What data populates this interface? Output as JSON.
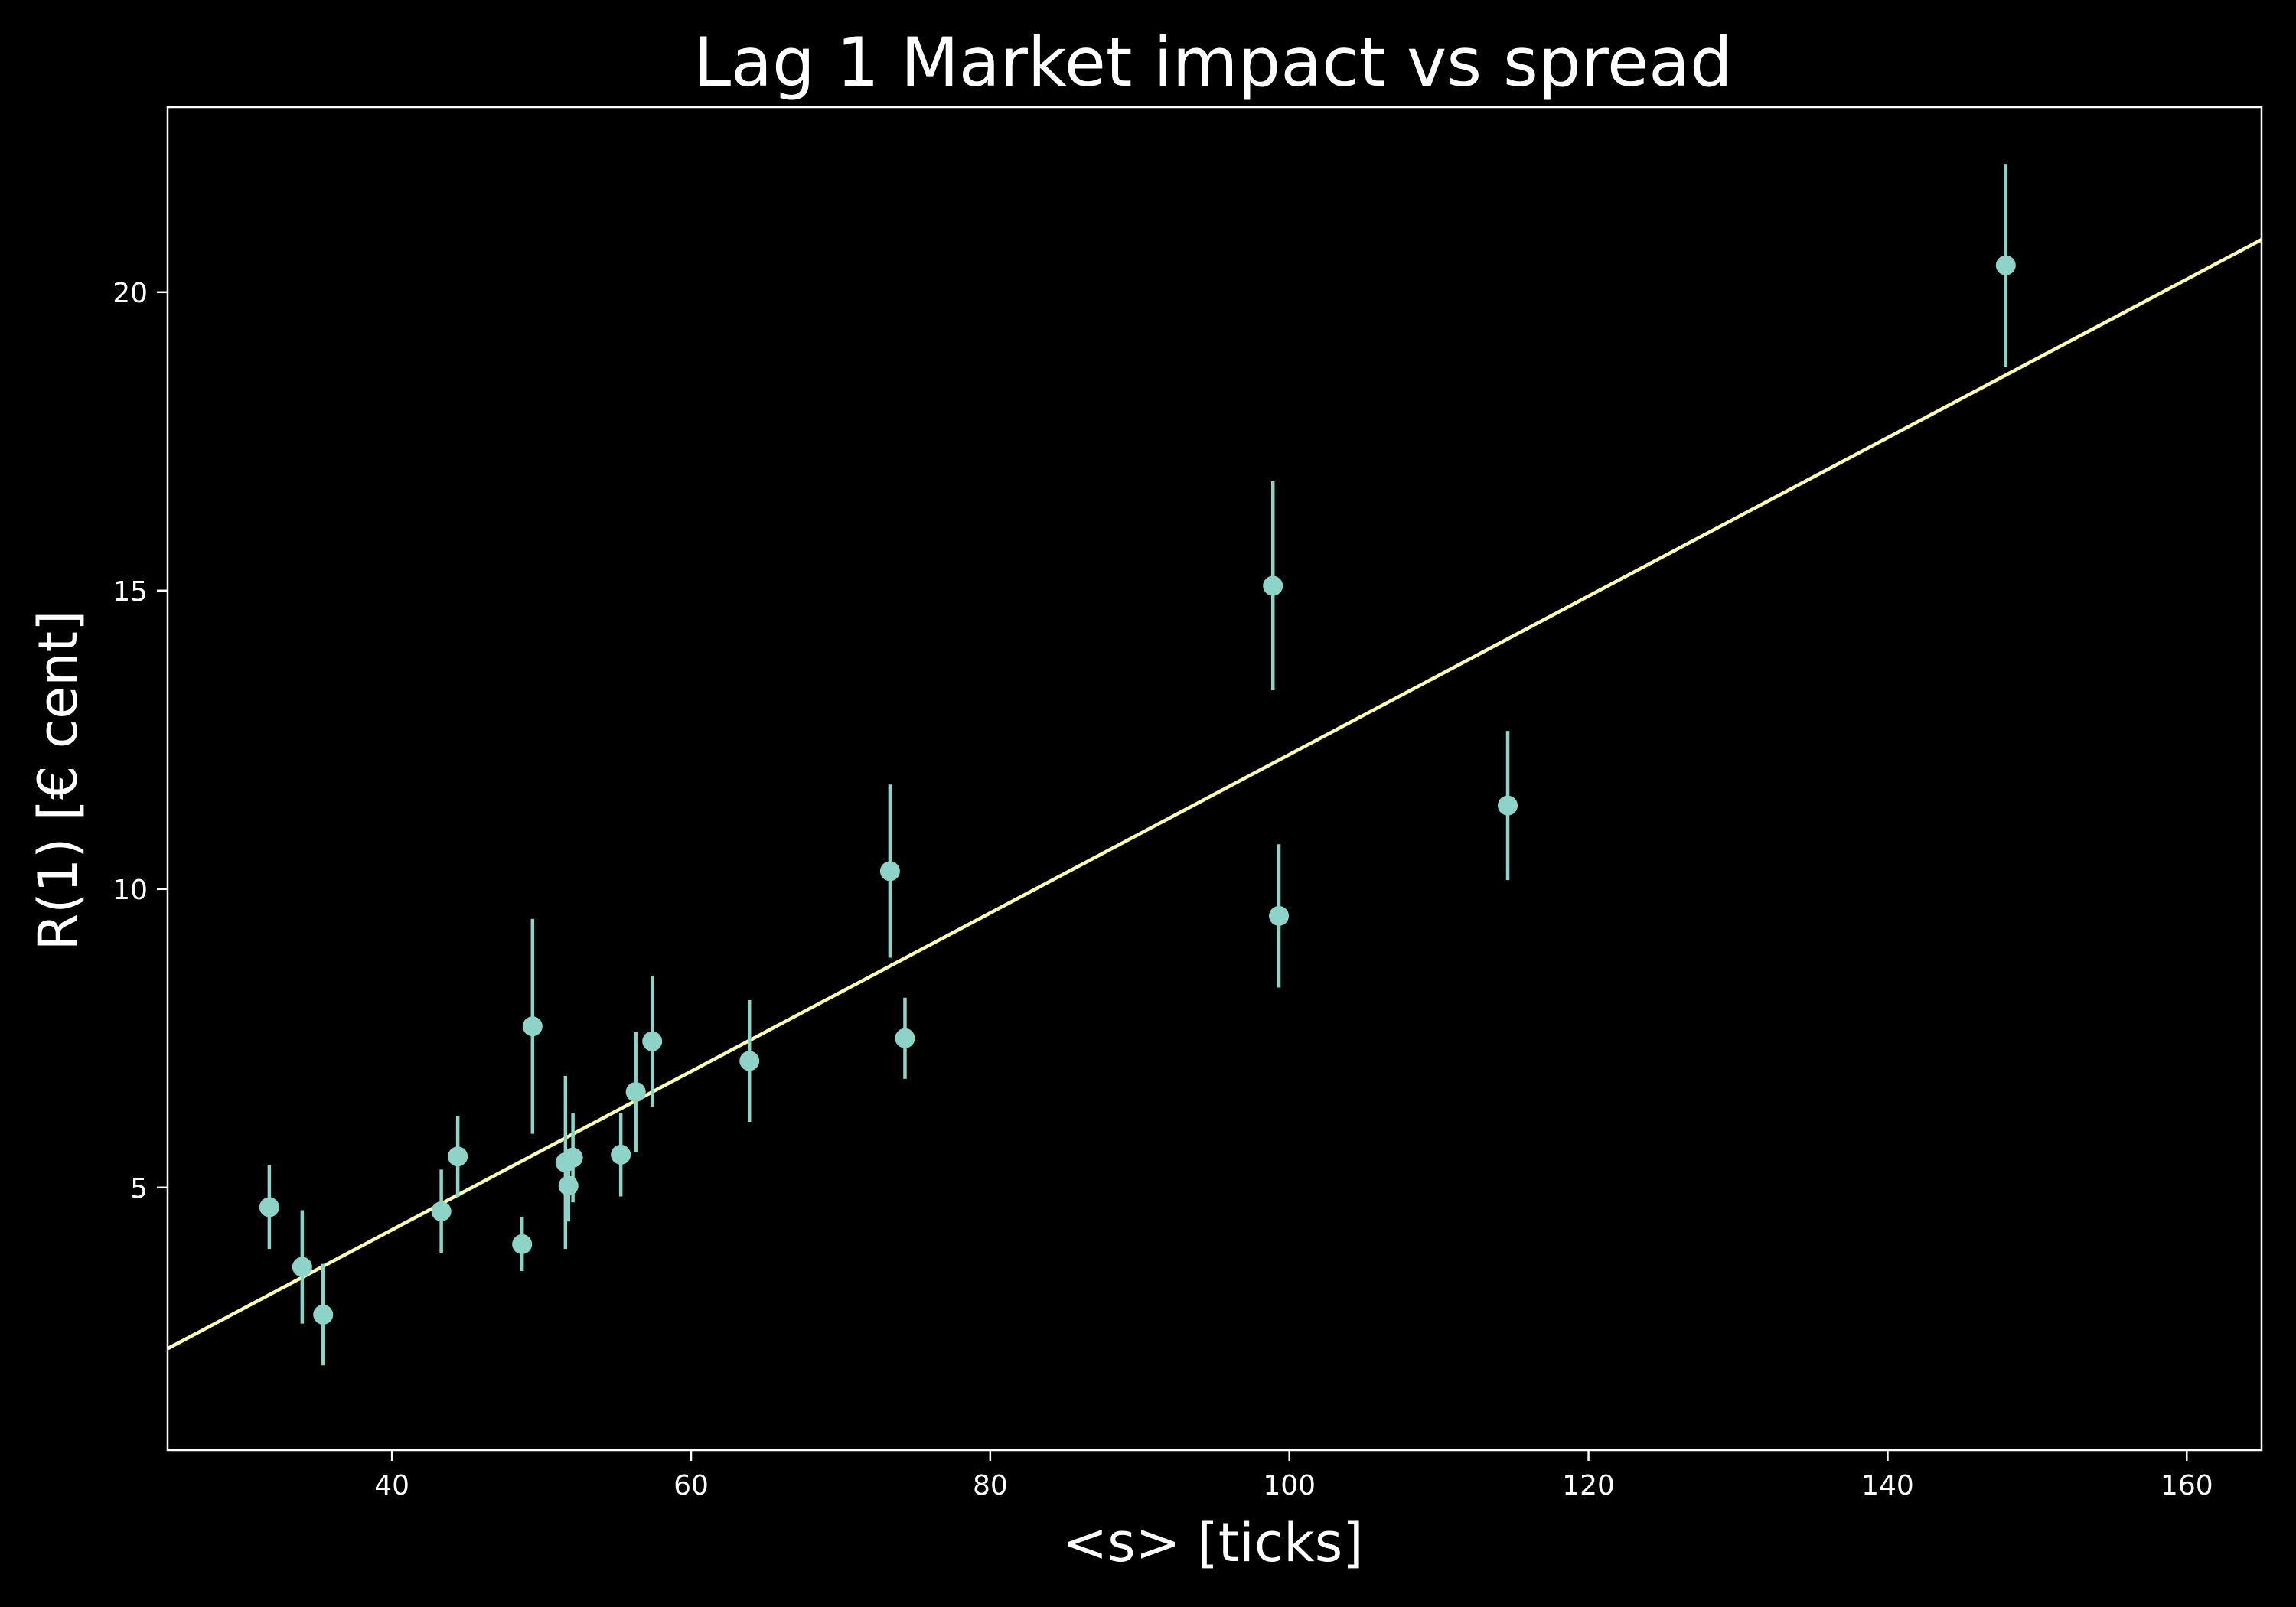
{
  "chart_data": {
    "type": "scatter",
    "title": "Lag 1 Market impact vs spread",
    "xlabel": "<s> [ticks]",
    "ylabel": "R(1) [€ cent]",
    "xlim": [
      25,
      165
    ],
    "ylim": [
      0.6,
      23.1
    ],
    "xticks": [
      40,
      60,
      80,
      100,
      120,
      140,
      160
    ],
    "yticks": [
      5,
      10,
      15,
      20
    ],
    "grid": false,
    "colors": {
      "background": "#000000",
      "foreground": "#ffffff",
      "points": "#8dd3c7",
      "fit_line": "#ffffb3"
    },
    "series": [
      {
        "name": "R(1) measurements",
        "style": "errorbar",
        "points": [
          {
            "x": 31.8,
            "y": 4.67,
            "err": 0.7
          },
          {
            "x": 34.0,
            "y": 3.67,
            "err": 0.95
          },
          {
            "x": 35.4,
            "y": 2.87,
            "err": 0.85
          },
          {
            "x": 43.3,
            "y": 4.6,
            "err": 0.7
          },
          {
            "x": 44.4,
            "y": 5.52,
            "err": 0.68
          },
          {
            "x": 48.7,
            "y": 4.05,
            "err": 0.45
          },
          {
            "x": 49.4,
            "y": 7.7,
            "err": 1.8
          },
          {
            "x": 51.6,
            "y": 5.42,
            "err": 1.45
          },
          {
            "x": 51.8,
            "y": 5.03,
            "err": 0.6
          },
          {
            "x": 52.1,
            "y": 5.5,
            "err": 0.75
          },
          {
            "x": 55.3,
            "y": 5.55,
            "err": 0.7
          },
          {
            "x": 56.3,
            "y": 6.6,
            "err": 1.0
          },
          {
            "x": 57.4,
            "y": 7.45,
            "err": 1.1
          },
          {
            "x": 63.9,
            "y": 7.12,
            "err": 1.02
          },
          {
            "x": 73.3,
            "y": 10.3,
            "err": 1.45
          },
          {
            "x": 74.3,
            "y": 7.5,
            "err": 0.68
          },
          {
            "x": 98.9,
            "y": 15.08,
            "err": 1.75
          },
          {
            "x": 99.3,
            "y": 9.55,
            "err": 1.2
          },
          {
            "x": 114.6,
            "y": 11.4,
            "err": 1.25
          },
          {
            "x": 147.9,
            "y": 20.45,
            "err": 1.7
          }
        ]
      },
      {
        "name": "linear fit",
        "style": "line",
        "x": [
          25,
          165
        ],
        "y": [
          2.3,
          20.88
        ]
      }
    ]
  }
}
